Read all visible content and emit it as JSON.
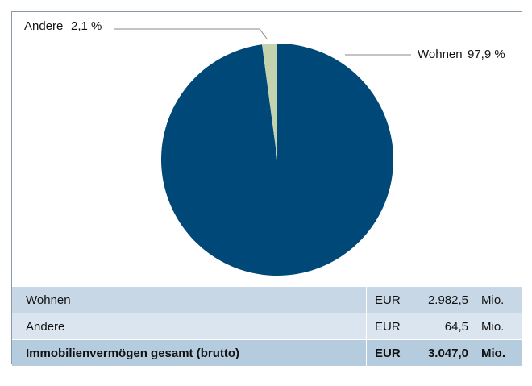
{
  "chart_data": {
    "type": "pie",
    "categories": [
      "Wohnen",
      "Andere"
    ],
    "values": [
      97.9,
      2.1
    ],
    "value_labels": [
      "97,9 %",
      "2,1 %"
    ],
    "colors": [
      "#004877",
      "#c3d3ad"
    ]
  },
  "table": {
    "rows": [
      [
        "Wohnen",
        "EUR",
        "2.982,5",
        "Mio."
      ],
      [
        "Andere",
        "EUR",
        "64,5",
        "Mio."
      ],
      [
        "Immobilienvermögen gesamt (brutto)",
        "EUR",
        "3.047,0",
        "Mio."
      ]
    ]
  }
}
